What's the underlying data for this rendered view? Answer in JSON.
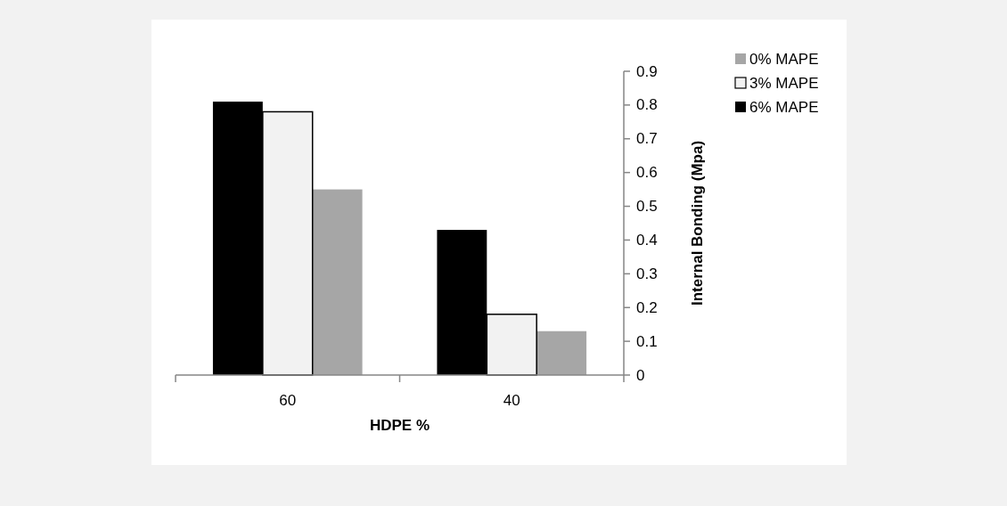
{
  "chart_data": {
    "type": "bar",
    "xlabel": "HDPE %",
    "ylabel": "Internal Bonding (Mpa)",
    "categories": [
      "60",
      "40"
    ],
    "series": [
      {
        "name": "0% MAPE",
        "color": "#a6a6a6",
        "values": [
          0.55,
          0.13
        ]
      },
      {
        "name": "3% MAPE",
        "color": "#f2f2f2",
        "values": [
          0.78,
          0.18
        ]
      },
      {
        "name": "6% MAPE",
        "color": "#000000",
        "values": [
          0.81,
          0.43
        ]
      }
    ],
    "ylim": [
      0,
      0.9
    ],
    "yticks": [
      0,
      0.1,
      0.2,
      0.3,
      0.4,
      0.5,
      0.6,
      0.7,
      0.8,
      0.9
    ],
    "grid": false,
    "legend": "right"
  }
}
